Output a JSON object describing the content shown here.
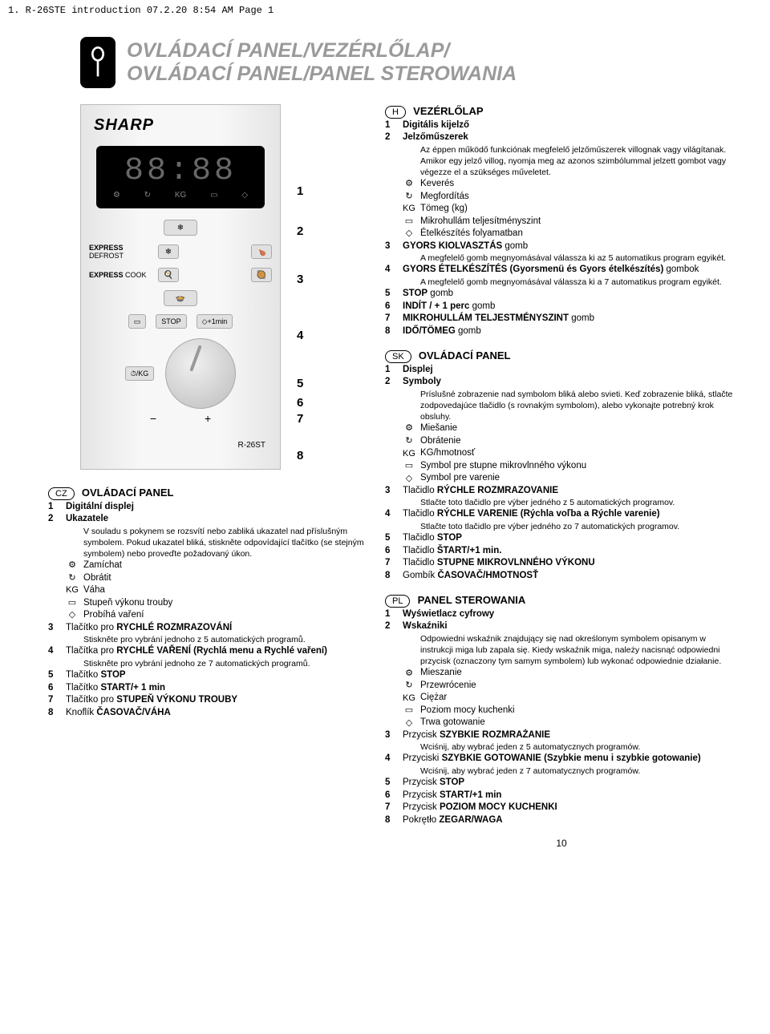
{
  "page_header": "1. R-26STE introduction  07.2.20  8:54 AM  Page 1",
  "title": {
    "line1": "OVLÁDACÍ PANEL/VEZÉRLŐLAP/",
    "line2": "OVLÁDACÍ PANEL/PANEL STEROWANIA"
  },
  "panel": {
    "brand": "SHARP",
    "digits": "88:88",
    "icons": [
      "⚙",
      "↻",
      "KG",
      "▭",
      "◇"
    ],
    "express_defrost": "EXPRESS DEFROST",
    "express_defrost_light": "DEFROST",
    "express_cook": "EXPRESS COOK",
    "express_cook_light": "COOK",
    "stop": "STOP",
    "plus1": "+1min",
    "kg": "/KG",
    "minus": "−",
    "plus": "+",
    "model": "R-26ST",
    "numbers": [
      "1",
      "2",
      "3",
      "4",
      "5",
      "6",
      "7",
      "8"
    ]
  },
  "cz": {
    "tag": "CZ",
    "title": "OVLÁDACÍ PANEL",
    "items": [
      {
        "n": "1",
        "bold": "Digitální displej"
      },
      {
        "n": "2",
        "bold": "Ukazatele",
        "desc": "V souladu s pokynem se rozsvítí nebo zabliká ukazatel nad příslušným symbolem. Pokud ukazatel bliká, stiskněte odpovídající tlačítko (se stejným symbolem) nebo proveďte požadovaný úkon."
      },
      {
        "sym": "⚙",
        "label": "Zamíchat"
      },
      {
        "sym": "↻",
        "label": "Obrátit"
      },
      {
        "sym": "KG",
        "label": "Váha"
      },
      {
        "sym": "▭",
        "label": "Stupeň výkonu trouby"
      },
      {
        "sym": "◇",
        "label": "Probíhá vaření"
      },
      {
        "n": "3",
        "text": "Tlačítko pro ",
        "bold": "RYCHLÉ ROZMRAZOVÁNÍ",
        "desc": "Stiskněte pro vybrání jednoho z 5 automatických programů."
      },
      {
        "n": "4",
        "text": "Tlačítka pro ",
        "bold": "RYCHLÉ VAŘENÍ (Rychlá menu a Rychlé vaření)",
        "desc": "Stiskněte pro vybrání jednoho ze 7 automatických programů."
      },
      {
        "n": "5",
        "text": "Tlačítko ",
        "bold": "STOP"
      },
      {
        "n": "6",
        "text": "Tlačítko ",
        "bold": "START/+ 1 min"
      },
      {
        "n": "7",
        "text": "Tlačítko pro ",
        "bold": "STUPEŇ VÝKONU TROUBY"
      },
      {
        "n": "8",
        "text": "Knoflík ",
        "bold": "ČASOVAČ/VÁHA"
      }
    ]
  },
  "h": {
    "tag": "H",
    "title": "VEZÉRLŐLAP",
    "items": [
      {
        "n": "1",
        "bold": "Digitális kijelző"
      },
      {
        "n": "2",
        "bold": "Jelzőműszerek",
        "desc": "Az éppen működő funkciónak megfelelő jelzőműszerek villognak vagy világítanak. Amikor egy jelző villog, nyomja meg az azonos szimbólummal jelzett gombot vagy végezze el a szükséges műveletet."
      },
      {
        "sym": "⚙",
        "label": "Keverés"
      },
      {
        "sym": "↻",
        "label": "Megfordítás"
      },
      {
        "sym": "KG",
        "label": "Tömeg (kg)"
      },
      {
        "sym": "▭",
        "label": "Mikrohullám teljesítményszint"
      },
      {
        "sym": "◇",
        "label": "Ételkészítés folyamatban"
      },
      {
        "n": "3",
        "bold": "GYORS KIOLVASZTÁS",
        " after": " gomb",
        "desc": "A megfelelő gomb megnyomásával válassza ki az 5 automatikus program egyikét."
      },
      {
        "n": "4",
        "bold": "GYORS ÉTELKÉSZÍTÉS (Gyorsmenü és Gyors ételkészítés)",
        " after": " gombok",
        "desc": "A megfelelő gomb megnyomásával válassza ki a 7 automatikus program egyikét."
      },
      {
        "n": "5",
        "bold": "STOP",
        " after": " gomb"
      },
      {
        "n": "6",
        "bold": "INDÍT / + 1 perc",
        " after": " gomb"
      },
      {
        "n": "7",
        "bold": "MIKROHULLÁM TELJESTMÉNYSZINT",
        " after": " gomb"
      },
      {
        "n": "8",
        "bold": "IDŐ/TÖMEG",
        " after": " gomb"
      }
    ]
  },
  "sk": {
    "tag": "SK",
    "title": "OVLÁDACÍ PANEL",
    "items": [
      {
        "n": "1",
        "bold": "Displej"
      },
      {
        "n": "2",
        "bold": "Symboly",
        "desc": "Príslušné zobrazenie nad symbolom bliká alebo svieti. Keď zobrazenie bliká, stlačte zodpovedajúce tlačidlo (s rovnakým symbolom), alebo vykonajte potrebný krok obsluhy."
      },
      {
        "sym": "⚙",
        "label": "Miešanie"
      },
      {
        "sym": "↻",
        "label": "Obrátenie"
      },
      {
        "sym": "KG",
        "label": "KG/hmotnosť"
      },
      {
        "sym": "▭",
        "label": "Symbol pre stupne mikrovlnného výkonu"
      },
      {
        "sym": "◇",
        "label": "Symbol pre varenie"
      },
      {
        "n": "3",
        "text": "Tlačidlo ",
        "bold": "RÝCHLE ROZMRAZOVANIE",
        "desc": "Stlačte toto tlačidlo pre výber jedného z 5 automatických programov."
      },
      {
        "n": "4",
        "text": "Tlačidlo ",
        "bold": "RÝCHLE VARENIE (Rýchla voľba a Rýchle varenie)",
        "desc": "Stlačte toto tlačidlo pre výber jedného zo 7 automatických programov."
      },
      {
        "n": "5",
        "text": "Tlačidlo ",
        "bold": "STOP"
      },
      {
        "n": "6",
        "text": "Tlačidlo ",
        "bold": "ŠTART/+1 min."
      },
      {
        "n": "7",
        "text": "Tlačidlo ",
        "bold": "STUPNE MIKROVLNNÉHO VÝKONU"
      },
      {
        "n": "8",
        "text": "Gombík ",
        "bold": "ČASOVAČ/HMOTNOSŤ"
      }
    ]
  },
  "pl": {
    "tag": "PL",
    "title": "PANEL STEROWANIA",
    "items": [
      {
        "n": "1",
        "bold": "Wyświetlacz cyfrowy"
      },
      {
        "n": "2",
        "bold": "Wskaźniki",
        "desc": "Odpowiedni wskaźnik znajdujący się nad określonym symbolem opisanym w instrukcji miga lub zapala się. Kiedy wskaźnik miga, należy nacisnąć odpowiedni przycisk (oznaczony tym samym symbolem) lub wykonać odpowiednie działanie."
      },
      {
        "sym": "⚙",
        "label": "Mieszanie"
      },
      {
        "sym": "↻",
        "label": "Przewrócenie"
      },
      {
        "sym": "KG",
        "label": "Ciężar"
      },
      {
        "sym": "▭",
        "label": "Poziom mocy kuchenki"
      },
      {
        "sym": "◇",
        "label": "Trwa gotowanie"
      },
      {
        "n": "3",
        "text": "Przycisk ",
        "bold": "SZYBKIE ROZMRAŻANIE",
        "desc": "Wciśnij, aby wybrać jeden z 5 automatycznych programów."
      },
      {
        "n": "4",
        "text": "Przyciski ",
        "bold": "SZYBKIE GOTOWANIE (Szybkie menu i szybkie gotowanie)",
        "desc": "Wciśnij, aby wybrać jeden z 7 automatycznych programów."
      },
      {
        "n": "5",
        "text": "Przycisk ",
        "bold": "STOP"
      },
      {
        "n": "6",
        "text": "Przycisk ",
        "bold": "START/+1 min"
      },
      {
        "n": "7",
        "text": "Przycisk ",
        "bold": "POZIOM MOCY KUCHENKI"
      },
      {
        "n": "8",
        "text": "Pokrętło ",
        "bold": "ZEGAR/WAGA"
      }
    ]
  },
  "page_number": "10"
}
